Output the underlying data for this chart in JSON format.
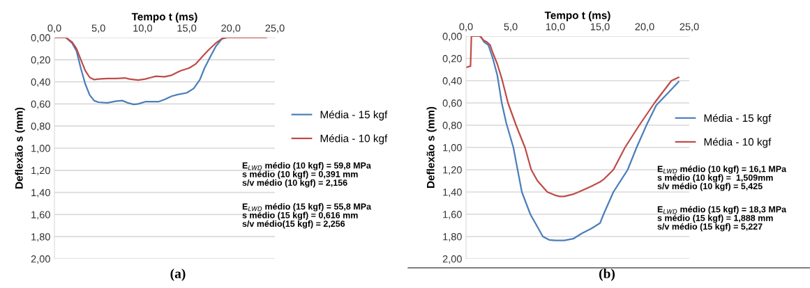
{
  "chart_data": [
    {
      "type": "line",
      "xlabel": "Tempo t (ms)",
      "ylabel": "Deflexão s (mm)",
      "xlim": [
        0,
        25
      ],
      "ylim": [
        2,
        0
      ],
      "xticks": [
        {
          "value": 0,
          "label": "0,0"
        },
        {
          "value": 5,
          "label": "5,0"
        },
        {
          "value": 10,
          "label": "10,0"
        },
        {
          "value": 15,
          "label": "15,0"
        },
        {
          "value": 20,
          "label": "20,0"
        },
        {
          "value": 25,
          "label": "25,0"
        }
      ],
      "yticks": [
        {
          "value": 0,
          "label": "0,00"
        },
        {
          "value": 0.2,
          "label": "0,20"
        },
        {
          "value": 0.4,
          "label": "0,40"
        },
        {
          "value": 0.6,
          "label": "0,60"
        },
        {
          "value": 0.8,
          "label": "0,80"
        },
        {
          "value": 1,
          "label": "1,00"
        },
        {
          "value": 1.2,
          "label": "1,20"
        },
        {
          "value": 1.4,
          "label": "1,40"
        },
        {
          "value": 1.6,
          "label": "1,60"
        },
        {
          "value": 1.8,
          "label": "1,80"
        },
        {
          "value": 2,
          "label": "2,00"
        }
      ],
      "grid": "y",
      "legend": "right",
      "marker": "none",
      "line_style": "solid",
      "series": [
        {
          "name": "Média - 15 kgf",
          "color": "#4a7ebb",
          "x": [
            0,
            1.3,
            2,
            2.5,
            3,
            3.5,
            4,
            4.5,
            5,
            6,
            7,
            7.7,
            8.3,
            9,
            9.5,
            10.3,
            11,
            11.8,
            12.5,
            13.3,
            14,
            15,
            15.8,
            16.5,
            17,
            17.7,
            18.3,
            19,
            19.5,
            24
          ],
          "values": [
            0,
            0,
            0.05,
            0.12,
            0.28,
            0.42,
            0.52,
            0.57,
            0.585,
            0.59,
            0.575,
            0.57,
            0.59,
            0.605,
            0.6,
            0.58,
            0.58,
            0.58,
            0.56,
            0.53,
            0.515,
            0.5,
            0.46,
            0.38,
            0.28,
            0.17,
            0.08,
            0.01,
            0,
            0
          ]
        },
        {
          "name": "Média - 10 kgf",
          "color": "#be4b48",
          "x": [
            0,
            1.3,
            2,
            2.5,
            3,
            3.5,
            4,
            4.5,
            5,
            6,
            7,
            8,
            8.5,
            9.5,
            10.3,
            11,
            11.5,
            12.5,
            13.3,
            14.3,
            15.3,
            16,
            16.8,
            17.5,
            18.3,
            19,
            19.5,
            24
          ],
          "values": [
            0,
            0,
            0.04,
            0.1,
            0.2,
            0.3,
            0.36,
            0.38,
            0.375,
            0.37,
            0.37,
            0.365,
            0.375,
            0.385,
            0.375,
            0.36,
            0.35,
            0.355,
            0.34,
            0.3,
            0.275,
            0.24,
            0.17,
            0.11,
            0.05,
            0.01,
            0,
            0
          ]
        }
      ],
      "annotations": [
        "E$_{LWD}$ médio (10 kgf) = 59,8 MPa\ns médio (10 kgf) = 0,391 mm\ns/v médio (10 kgf) = 2,156",
        "E$_{LWD}$ médio (15 kgf) = 55,8 MPa\ns médio (15 kgf) = 0,616 mm\ns/v médio(15 kgf) = 2,256",
        "(a)"
      ]
    },
    {
      "type": "line",
      "xlabel": "Tempo t (ms)",
      "ylabel": "Deflexão s (mm)",
      "xlim": [
        0,
        25
      ],
      "ylim": [
        2,
        0
      ],
      "xticks": [
        {
          "value": 0,
          "label": "0,0"
        },
        {
          "value": 5,
          "label": "5,0"
        },
        {
          "value": 10,
          "label": "10,0"
        },
        {
          "value": 15,
          "label": "15,0"
        },
        {
          "value": 20,
          "label": "20,0"
        },
        {
          "value": 25,
          "label": "25,0"
        }
      ],
      "yticks": [
        {
          "value": 0,
          "label": "0,00"
        },
        {
          "value": 0.2,
          "label": "0,20"
        },
        {
          "value": 0.4,
          "label": "0,40"
        },
        {
          "value": 0.6,
          "label": "0,60"
        },
        {
          "value": 0.8,
          "label": "0,80"
        },
        {
          "value": 1,
          "label": "1,00"
        },
        {
          "value": 1.2,
          "label": "1,20"
        },
        {
          "value": 1.4,
          "label": "1,40"
        },
        {
          "value": 1.6,
          "label": "1,60"
        },
        {
          "value": 1.8,
          "label": "1,80"
        },
        {
          "value": 2,
          "label": "2,00"
        }
      ],
      "grid": "y",
      "legend": "right",
      "marker": "none",
      "line_style": "solid",
      "series": [
        {
          "name": "Média - 15 kgf",
          "color": "#4a7ebb",
          "x": [
            1.6,
            2,
            2.5,
            3,
            3.5,
            4,
            4.5,
            5.3,
            6.25,
            7.2,
            8.6,
            9.3,
            10,
            11,
            12,
            13,
            14,
            15,
            15.4,
            16.5,
            18.1,
            19.1,
            20.2,
            21.3,
            22.5,
            23.8
          ],
          "values": [
            0,
            0.05,
            0.08,
            0.2,
            0.35,
            0.6,
            0.78,
            1,
            1.4,
            1.6,
            1.8,
            1.83,
            1.835,
            1.835,
            1.82,
            1.77,
            1.73,
            1.68,
            1.6,
            1.4,
            1.2,
            1,
            0.8,
            0.62,
            0.52,
            0.41
          ]
        },
        {
          "name": "Média - 10 kgf",
          "color": "#be4b48",
          "x": [
            0,
            0.5,
            0.6,
            1.5,
            1.7,
            2,
            2.3,
            2.7,
            3,
            3.5,
            4,
            4.7,
            5.6,
            6.6,
            7.3,
            8,
            9.1,
            10,
            10.5,
            11,
            12,
            12.6,
            14,
            15,
            15.5,
            16.5,
            17.8,
            19.4,
            21.1,
            23,
            23.8
          ],
          "values": [
            0.28,
            0.27,
            0,
            0,
            0.01,
            0.04,
            0.05,
            0.08,
            0.15,
            0.25,
            0.38,
            0.6,
            0.8,
            1,
            1.2,
            1.3,
            1.4,
            1.43,
            1.44,
            1.44,
            1.42,
            1.4,
            1.35,
            1.31,
            1.28,
            1.2,
            1,
            0.8,
            0.6,
            0.4,
            0.37
          ]
        }
      ],
      "annotations": [
        "E$_{LWD}$ médio (10 kgf) = 16,1 MPa\ns médio (10 kgf) =  1,509mm\ns/v médio (10 kgf) = 5,425",
        "E$_{LWD}$ médio (15 kgf) = 18,3 MPa\ns médio (15 kgf) = 1,888 mm\ns/v médio (15 kgf) = 5,227",
        "(b)"
      ]
    }
  ]
}
